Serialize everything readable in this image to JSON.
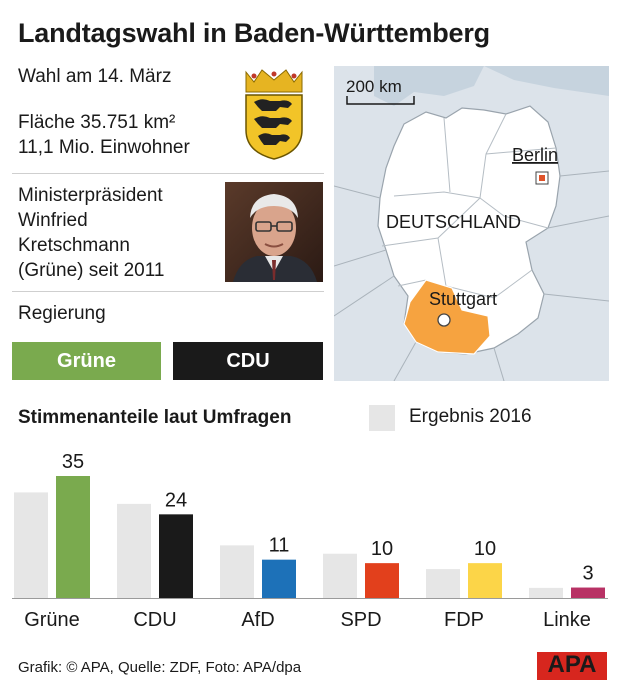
{
  "header": {
    "title": "Landtagswahl in Baden-Württemberg"
  },
  "facts": {
    "election_date": "Wahl am 14. März",
    "area": "Fläche 35.751 km²",
    "population": "11,1 Mio. Einwohner"
  },
  "premier": {
    "label": "Ministerpräsident",
    "name_line1": "Winfried",
    "name_line2": "Kretschmann",
    "party_since": "(Grüne) seit 2011"
  },
  "government": {
    "label": "Regierung",
    "parties": [
      {
        "name": "Grüne",
        "color": "#7aaa4e"
      },
      {
        "name": "CDU",
        "color": "#1a1a1a"
      }
    ]
  },
  "map": {
    "scale_label": "200 km",
    "country_label": "DEUTSCHLAND",
    "capital_label": "Berlin",
    "state_capital_label": "Stuttgart",
    "highlight_color": "#f6a340",
    "capital_marker_color": "#e0532a"
  },
  "chart_section": {
    "title": "Stimmenanteile laut Umfragen",
    "legend_label": "Ergebnis 2016",
    "legend_color": "#e6e6e6"
  },
  "chart_data": {
    "type": "bar",
    "categories": [
      "Grüne",
      "CDU",
      "AfD",
      "SPD",
      "FDP",
      "Linke"
    ],
    "series": [
      {
        "name": "Ergebnis 2016",
        "values": [
          30.3,
          27.0,
          15.1,
          12.7,
          8.3,
          2.9
        ],
        "color": "#e6e6e6"
      },
      {
        "values": [
          35,
          24,
          11,
          10,
          10,
          3
        ],
        "colors": [
          "#7aaa4e",
          "#1a1a1a",
          "#1d71b8",
          "#e2401c",
          "#fcd548",
          "#b83265"
        ]
      }
    ],
    "data_labels": [
      "35",
      "24",
      "11",
      "10",
      "10",
      "3"
    ],
    "ylim": [
      0,
      35
    ],
    "grid": false
  },
  "footer": {
    "source": "Grafik: © APA, Quelle: ZDF, Foto: APA/dpa",
    "logo_text": "APA"
  }
}
